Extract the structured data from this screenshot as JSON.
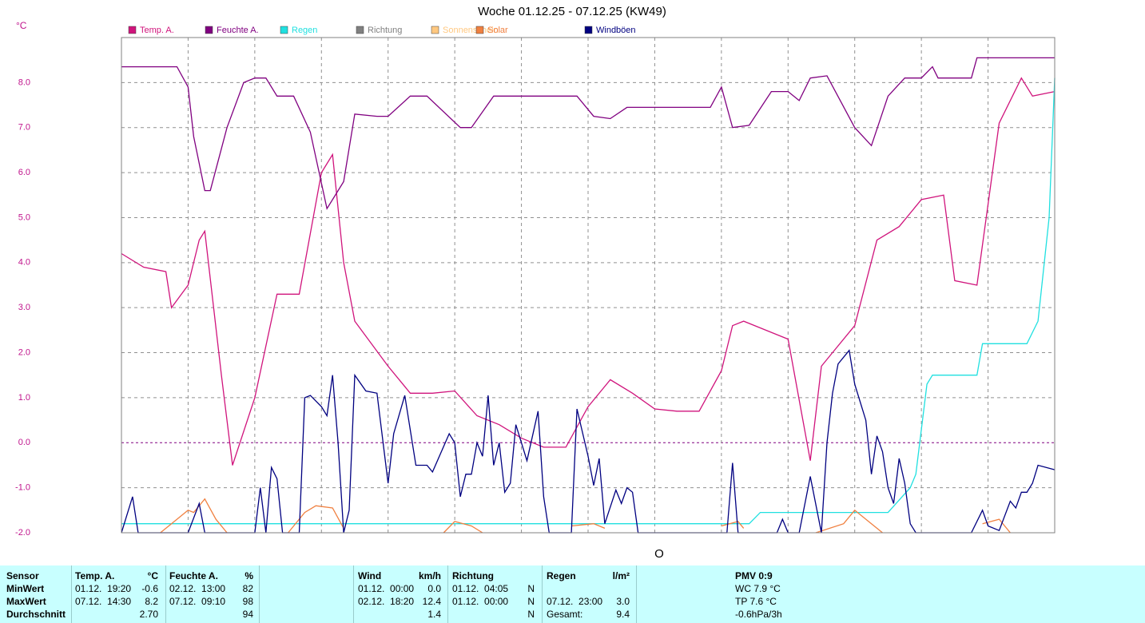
{
  "chart_data": {
    "type": "line",
    "title": "Woche 01.12.25 - 07.12.25 (KW49)",
    "y_label": "°C",
    "annotation": "O",
    "xlim": [
      0,
      168
    ],
    "xticks": [
      12,
      24,
      36,
      48,
      60,
      72,
      84,
      96,
      108,
      120,
      132,
      144,
      156
    ],
    "ylim": [
      -2,
      9
    ],
    "yticks": [
      {
        "value": -2,
        "label": "-2.0"
      },
      {
        "value": -1,
        "label": "-1.0"
      },
      {
        "value": 0,
        "label": "0.0"
      },
      {
        "value": 1,
        "label": "1.0"
      },
      {
        "value": 2,
        "label": "2.0"
      },
      {
        "value": 3,
        "label": "3.0"
      },
      {
        "value": 4,
        "label": "4.0"
      },
      {
        "value": 5,
        "label": "5.0"
      },
      {
        "value": 6,
        "label": "6.0"
      },
      {
        "value": 7,
        "label": "7.0"
      },
      {
        "value": 8,
        "label": "8.0"
      }
    ],
    "grid": true,
    "series": [
      {
        "name": "Temp. A.",
        "color": "#d0147c",
        "x": [
          0,
          4,
          8,
          9,
          12,
          14,
          15,
          18,
          20,
          24,
          28,
          32,
          36,
          38,
          40,
          42,
          48,
          52,
          56,
          60,
          64,
          68,
          72,
          76,
          80,
          84,
          88,
          92,
          96,
          100,
          104,
          108,
          110,
          112,
          116,
          120,
          124,
          126,
          128,
          132,
          136,
          140,
          144,
          148,
          150,
          154,
          158,
          162,
          164,
          168
        ],
        "values": [
          4.2,
          3.9,
          3.8,
          3.0,
          3.5,
          4.5,
          4.7,
          1.5,
          -0.5,
          1.0,
          3.3,
          3.3,
          6.0,
          6.4,
          4.0,
          2.7,
          1.7,
          1.1,
          1.1,
          1.15,
          0.6,
          0.4,
          0.1,
          -0.1,
          -0.1,
          0.8,
          1.4,
          1.1,
          0.75,
          0.7,
          0.7,
          1.6,
          2.6,
          2.7,
          2.5,
          2.3,
          -0.4,
          1.7,
          2.0,
          2.6,
          4.5,
          4.8,
          5.4,
          5.5,
          3.6,
          3.5,
          7.1,
          8.1,
          7.7,
          7.8
        ]
      },
      {
        "name": "Feuchte A.",
        "color": "#800080",
        "x": [
          0,
          10,
          12,
          13,
          15,
          16,
          19,
          22,
          24,
          26,
          28,
          31,
          34,
          37,
          40,
          42,
          46,
          48,
          52,
          55,
          61,
          63,
          67,
          82,
          85,
          88,
          91,
          106,
          108,
          110,
          113,
          117,
          120,
          122,
          124,
          127,
          132,
          135,
          138,
          141,
          144,
          146,
          147,
          153,
          154,
          168
        ],
        "values": [
          8.35,
          8.35,
          7.9,
          6.8,
          5.6,
          5.6,
          7.0,
          8.0,
          8.1,
          8.1,
          7.7,
          7.7,
          6.9,
          5.2,
          5.8,
          7.3,
          7.25,
          7.25,
          7.7,
          7.7,
          7.0,
          7.0,
          7.7,
          7.7,
          7.25,
          7.2,
          7.45,
          7.45,
          7.9,
          7.0,
          7.05,
          7.8,
          7.8,
          7.6,
          8.1,
          8.15,
          7.0,
          6.6,
          7.7,
          8.1,
          8.1,
          8.35,
          8.1,
          8.1,
          8.55,
          8.55
        ]
      },
      {
        "name": "Regen",
        "color": "#20e0e0",
        "x": [
          0,
          113,
          115,
          138,
          142,
          143,
          145,
          146,
          154,
          155,
          163,
          165,
          167,
          168
        ],
        "values": [
          -1.8,
          -1.8,
          -1.55,
          -1.55,
          -1.0,
          -0.7,
          1.3,
          1.5,
          1.5,
          2.2,
          2.2,
          2.7,
          5.0,
          8.1
        ]
      },
      {
        "name": "Richtung",
        "color": "#808080",
        "x": [],
        "values": []
      },
      {
        "name": "Sonnenschein",
        "color": "#ffc880",
        "x": [],
        "values": []
      },
      {
        "name": "Solar",
        "color": "#f08040",
        "x": [
          7,
          10,
          12,
          13,
          15,
          17,
          19,
          25,
          30,
          33,
          35,
          38,
          40,
          50,
          58,
          60,
          63,
          65,
          75,
          81,
          85,
          87,
          100,
          108,
          111,
          112,
          120,
          125,
          130,
          132,
          135,
          137,
          145,
          155,
          158,
          160
        ],
        "values": [
          -2.0,
          -1.7,
          -1.5,
          -1.55,
          -1.25,
          -1.7,
          -2.0,
          null,
          -2.0,
          -1.55,
          -1.4,
          -1.45,
          -1.9,
          null,
          -2.0,
          -1.75,
          -1.85,
          -2.0,
          null,
          -1.85,
          -1.8,
          -1.9,
          null,
          -1.85,
          -1.75,
          -1.9,
          null,
          -2.0,
          -1.8,
          -1.5,
          -1.8,
          -2.0,
          null,
          -1.8,
          -1.7,
          -2.0
        ]
      },
      {
        "name": "Windböen",
        "color": "#000080",
        "x": [
          0,
          2,
          3,
          8,
          12,
          14,
          15,
          24,
          25,
          26,
          27,
          28,
          29,
          32,
          33,
          34,
          36,
          37,
          38,
          39,
          40,
          41,
          42,
          44,
          46,
          48,
          49,
          51,
          53,
          55,
          56,
          59,
          60,
          61,
          62,
          63,
          64,
          65,
          66,
          67,
          68,
          69,
          70,
          71,
          73,
          75,
          76,
          77,
          81,
          82,
          84,
          85,
          86,
          87,
          89,
          90,
          91,
          92,
          93,
          97,
          109,
          110,
          111,
          118,
          119,
          120,
          122,
          124,
          126,
          127,
          128,
          129,
          131,
          132,
          134,
          135,
          136,
          137,
          138,
          139,
          140,
          141,
          142,
          143,
          153,
          155,
          156,
          158,
          160,
          161,
          162,
          163,
          164,
          165,
          168
        ],
        "values": [
          -2.0,
          -1.2,
          -2.0,
          -2.0,
          -2.0,
          -1.35,
          -2.0,
          -2.0,
          -1.0,
          -2.0,
          -0.55,
          -0.8,
          -2.0,
          -2.0,
          1.0,
          1.05,
          0.8,
          0.6,
          1.5,
          0.0,
          -2.0,
          -1.5,
          1.5,
          1.15,
          1.1,
          -0.9,
          0.2,
          1.05,
          -0.5,
          -0.5,
          -0.65,
          0.2,
          0.0,
          -1.2,
          -0.7,
          -0.7,
          0.0,
          -0.3,
          1.05,
          -0.5,
          0.0,
          -1.1,
          -0.9,
          0.4,
          -0.4,
          0.7,
          -1.2,
          -2.0,
          -2.0,
          0.75,
          -0.3,
          -0.95,
          -0.35,
          -1.8,
          -1.05,
          -1.35,
          -1.0,
          -1.1,
          -2.0,
          -2.0,
          -2.0,
          -0.45,
          -2.0,
          -2.0,
          -1.7,
          -2.0,
          -2.0,
          -0.75,
          -2.0,
          0.0,
          1.1,
          1.75,
          2.05,
          1.3,
          0.5,
          -0.7,
          0.15,
          -0.2,
          -1.0,
          -1.35,
          -0.35,
          -0.9,
          -1.8,
          -2.0,
          -2.0,
          -1.5,
          -1.85,
          -1.95,
          -1.3,
          -1.45,
          -1.1,
          -1.1,
          -0.9,
          -0.5,
          -0.6
        ]
      }
    ]
  },
  "table": {
    "rows": [
      [
        "Sensor",
        "Temp. A.",
        "°C",
        "Feuchte A.",
        "%",
        "Wind",
        "km/h",
        "Richtung",
        null,
        "Regen",
        "l/m²",
        "PMV 0:9"
      ],
      [
        "MinWert",
        "01.12.  19:20",
        "-0.6",
        "02.12.  13:00",
        "82",
        "01.12.  00:00",
        "0.0",
        "01.12.  04:05",
        "N",
        null,
        null,
        "WC 7.9 °C"
      ],
      [
        "MaxWert",
        "07.12.  14:30",
        "8.2",
        "07.12.  09:10",
        "98",
        "02.12.  18:20",
        "12.4",
        "01.12.  00:00",
        "N",
        "07.12.  23:00",
        "3.0",
        "TP 7.6 °C"
      ],
      [
        "Durchschnitt",
        null,
        "2.70",
        null,
        "94",
        null,
        "1.4",
        null,
        "N",
        "Gesamt:",
        "9.4",
        "-0.6hPa/3h"
      ]
    ]
  }
}
